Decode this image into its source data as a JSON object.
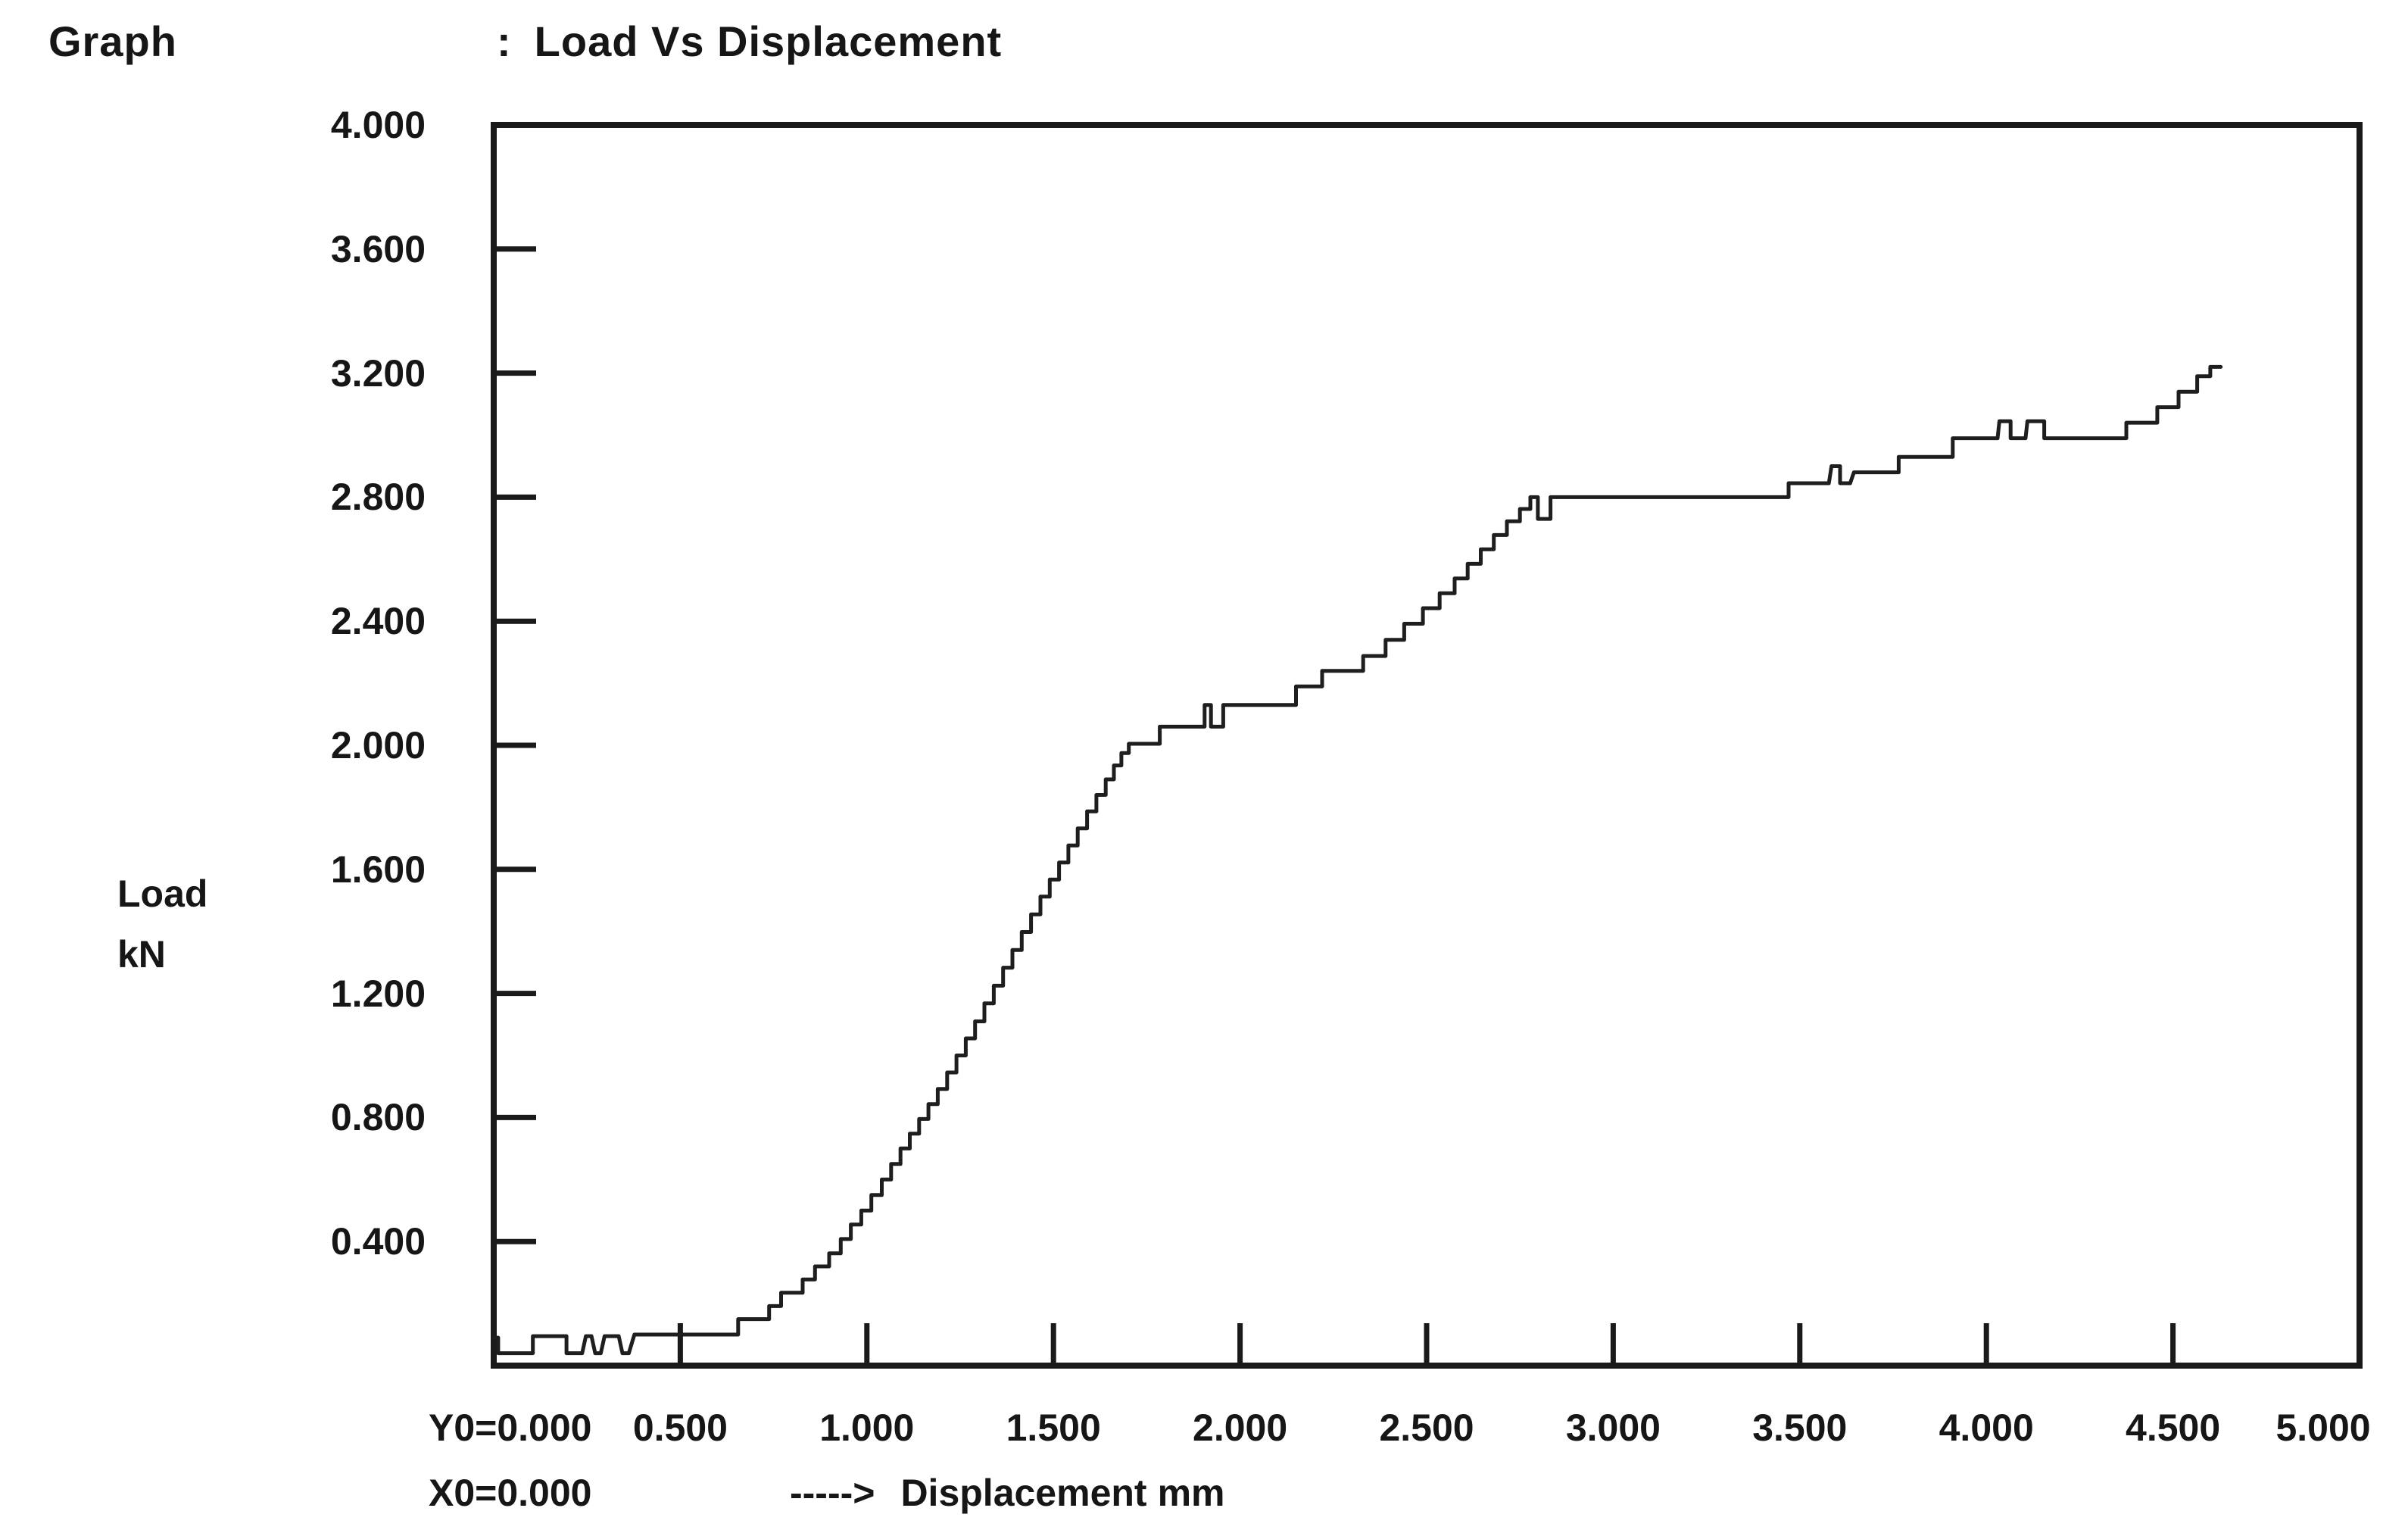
{
  "header": {
    "label": "Graph",
    "separator": ":",
    "title": "Load Vs Displacement"
  },
  "y_axis": {
    "name_line1": "Load",
    "name_line2": "kN",
    "origin_label": "Y0=0.000",
    "tick_labels": [
      "0.400",
      "0.800",
      "1.200",
      "1.600",
      "2.000",
      "2.400",
      "2.800",
      "3.200",
      "3.600",
      "4.000"
    ]
  },
  "x_axis": {
    "origin_label": "X0=0.000",
    "arrow": "----->",
    "label": "Displacement",
    "unit": "mm",
    "tick_labels": [
      "0.500",
      "1.000",
      "1.500",
      "2.000",
      "2.500",
      "3.000",
      "3.500",
      "4.000",
      "4.500",
      "5.000"
    ]
  },
  "chart_data": {
    "type": "line",
    "title": "Load Vs Displacement",
    "xlabel": "Displacement mm",
    "ylabel": "Load kN",
    "xlim": [
      0,
      5
    ],
    "ylim": [
      0,
      4
    ],
    "x_ticks": [
      0.5,
      1.0,
      1.5,
      2.0,
      2.5,
      3.0,
      3.5,
      4.0,
      4.5,
      5.0
    ],
    "y_ticks": [
      0.4,
      0.8,
      1.2,
      1.6,
      2.0,
      2.4,
      2.8,
      3.2,
      3.6,
      4.0
    ],
    "grid": false,
    "legend": false,
    "line_color": "#1e1e1e",
    "series": [
      {
        "name": "Load vs Displacement curve",
        "style": "stepped",
        "plateaus_format": "[x_start_mm, x_end_mm, load_kN]",
        "plateaus": [
          [
            0.0,
            0.012,
            0.09
          ],
          [
            0.012,
            0.105,
            0.04
          ],
          [
            0.105,
            0.195,
            0.095
          ],
          [
            0.195,
            0.237,
            0.04
          ],
          [
            0.247,
            0.262,
            0.095
          ],
          [
            0.272,
            0.287,
            0.04
          ],
          [
            0.297,
            0.335,
            0.095
          ],
          [
            0.345,
            0.362,
            0.04
          ],
          [
            0.377,
            0.655,
            0.1
          ],
          [
            0.655,
            0.738,
            0.15
          ],
          [
            0.738,
            0.77,
            0.192
          ],
          [
            0.77,
            0.828,
            0.235
          ],
          [
            0.828,
            0.861,
            0.278
          ],
          [
            0.861,
            0.899,
            0.32
          ],
          [
            0.899,
            0.93,
            0.362
          ],
          [
            0.93,
            0.957,
            0.408
          ],
          [
            0.957,
            0.985,
            0.455
          ],
          [
            0.985,
            1.012,
            0.5
          ],
          [
            1.012,
            1.04,
            0.55
          ],
          [
            1.04,
            1.065,
            0.6
          ],
          [
            1.065,
            1.09,
            0.65
          ],
          [
            1.09,
            1.115,
            0.7
          ],
          [
            1.115,
            1.14,
            0.748
          ],
          [
            1.14,
            1.165,
            0.795
          ],
          [
            1.165,
            1.19,
            0.843
          ],
          [
            1.19,
            1.215,
            0.892
          ],
          [
            1.215,
            1.24,
            0.945
          ],
          [
            1.24,
            1.265,
            1.0
          ],
          [
            1.265,
            1.29,
            1.055
          ],
          [
            1.29,
            1.315,
            1.11
          ],
          [
            1.315,
            1.34,
            1.168
          ],
          [
            1.34,
            1.365,
            1.225
          ],
          [
            1.365,
            1.39,
            1.283
          ],
          [
            1.39,
            1.415,
            1.34
          ],
          [
            1.415,
            1.44,
            1.398
          ],
          [
            1.44,
            1.465,
            1.455
          ],
          [
            1.465,
            1.49,
            1.512
          ],
          [
            1.49,
            1.515,
            1.567
          ],
          [
            1.515,
            1.54,
            1.622
          ],
          [
            1.54,
            1.565,
            1.677
          ],
          [
            1.565,
            1.59,
            1.732
          ],
          [
            1.59,
            1.615,
            1.787
          ],
          [
            1.615,
            1.64,
            1.84
          ],
          [
            1.64,
            1.662,
            1.89
          ],
          [
            1.662,
            1.682,
            1.935
          ],
          [
            1.682,
            1.702,
            1.975
          ],
          [
            1.702,
            1.785,
            2.005
          ],
          [
            1.785,
            1.905,
            2.06
          ],
          [
            1.905,
            1.922,
            2.13
          ],
          [
            1.922,
            1.955,
            2.06
          ],
          [
            1.955,
            2.15,
            2.13
          ],
          [
            2.15,
            2.22,
            2.19
          ],
          [
            2.22,
            2.33,
            2.24
          ],
          [
            2.33,
            2.39,
            2.288
          ],
          [
            2.39,
            2.44,
            2.34
          ],
          [
            2.44,
            2.49,
            2.392
          ],
          [
            2.49,
            2.535,
            2.442
          ],
          [
            2.535,
            2.575,
            2.49
          ],
          [
            2.575,
            2.61,
            2.538
          ],
          [
            2.61,
            2.645,
            2.585
          ],
          [
            2.645,
            2.68,
            2.632
          ],
          [
            2.68,
            2.715,
            2.678
          ],
          [
            2.715,
            2.75,
            2.722
          ],
          [
            2.75,
            2.778,
            2.762
          ],
          [
            2.778,
            2.798,
            2.8
          ],
          [
            2.798,
            2.832,
            2.73
          ],
          [
            2.832,
            3.47,
            2.8
          ],
          [
            3.47,
            3.578,
            2.845
          ],
          [
            3.585,
            3.608,
            2.9
          ],
          [
            3.608,
            3.635,
            2.845
          ],
          [
            3.645,
            3.765,
            2.88
          ],
          [
            3.765,
            3.91,
            2.93
          ],
          [
            3.91,
            4.03,
            2.99
          ],
          [
            4.035,
            4.065,
            3.045
          ],
          [
            4.065,
            4.105,
            2.99
          ],
          [
            4.11,
            4.155,
            3.045
          ],
          [
            4.155,
            4.375,
            2.99
          ],
          [
            4.375,
            4.458,
            3.04
          ],
          [
            4.458,
            4.515,
            3.09
          ],
          [
            4.515,
            4.565,
            3.14
          ],
          [
            4.565,
            4.6,
            3.19
          ],
          [
            4.6,
            4.628,
            3.22
          ]
        ]
      }
    ]
  }
}
